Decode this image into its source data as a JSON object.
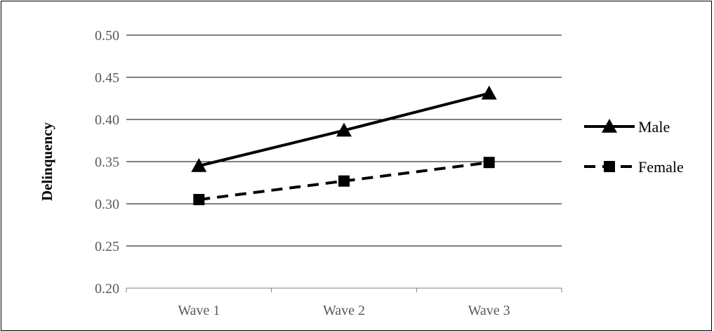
{
  "chart_data": {
    "type": "line",
    "title": "",
    "xlabel": "",
    "ylabel": "Delinquency",
    "categories": [
      "Wave 1",
      "Wave 2",
      "Wave 3"
    ],
    "ylim": [
      0.2,
      0.5
    ],
    "yticks": [
      "0.20",
      "0.25",
      "0.30",
      "0.35",
      "0.40",
      "0.45",
      "0.50"
    ],
    "grid": true,
    "legend_position": "right",
    "series": [
      {
        "name": "Male",
        "values": [
          0.345,
          0.387,
          0.431
        ],
        "marker": "triangle",
        "line_style": "solid",
        "color": "#000000"
      },
      {
        "name": "Female",
        "values": [
          0.305,
          0.327,
          0.349
        ],
        "marker": "square",
        "line_style": "dashed",
        "color": "#000000"
      }
    ]
  }
}
